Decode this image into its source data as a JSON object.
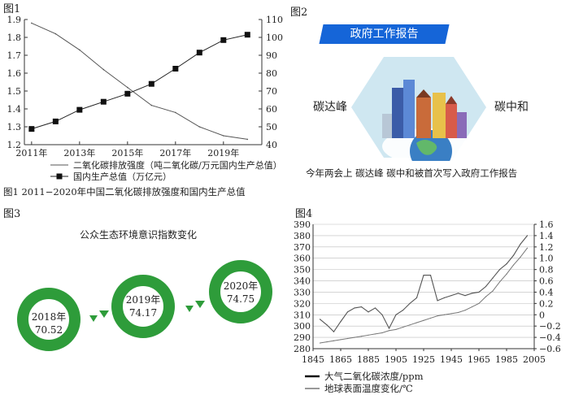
{
  "fig1": {
    "label": "图1",
    "caption": "图1  2011−2020年中国二氧化碳排放强度和国内生产总值",
    "legend": [
      "二氧化碳排放强度（吨二氧化碳/万元国内生产总值）",
      "国内生产总值（万亿元）"
    ],
    "y_left_ticks": [
      "1.2",
      "1.3",
      "1.4",
      "1.5",
      "1.6",
      "1.7",
      "1.8",
      "1.9"
    ],
    "y_right_ticks": [
      "40",
      "50",
      "60",
      "70",
      "80",
      "90",
      "100",
      "110"
    ],
    "x_ticks": [
      "2011年",
      "2013年",
      "2015年",
      "2017年",
      "2019年"
    ]
  },
  "chart_data": [
    {
      "type": "line",
      "x": [
        2011,
        2012,
        2013,
        2014,
        2015,
        2016,
        2017,
        2018,
        2019,
        2020
      ],
      "series": [
        {
          "name": "二氧化碳排放强度（吨二氧化碳/万元国内生产总值）",
          "axis": "left",
          "values": [
            1.88,
            1.82,
            1.73,
            1.62,
            1.52,
            1.42,
            1.38,
            1.3,
            1.25,
            1.23
          ]
        },
        {
          "name": "国内生产总值（万亿元）",
          "axis": "right",
          "marker": "square",
          "values": [
            48.8,
            53.0,
            59.5,
            64.0,
            68.5,
            74.0,
            82.5,
            91.5,
            98.5,
            101.5
          ]
        }
      ],
      "ylim_left": [
        1.2,
        1.9
      ],
      "ylim_right": [
        40,
        110
      ],
      "xlim": [
        2010.7,
        2020.6
      ]
    },
    {
      "type": "line",
      "x": [
        1850,
        1855,
        1860,
        1865,
        1870,
        1875,
        1880,
        1885,
        1890,
        1895,
        1900,
        1905,
        1910,
        1915,
        1920,
        1925,
        1930,
        1935,
        1940,
        1945,
        1950,
        1955,
        1960,
        1965,
        1970,
        1975,
        1980,
        1985,
        1990,
        1995,
        2000
      ],
      "series": [
        {
          "name": "大气二氧化碳浓度/ppm",
          "axis": "left",
          "values": [
            285,
            286,
            287,
            288,
            289,
            290,
            291,
            292,
            293,
            294,
            296,
            297,
            299,
            301,
            303,
            305,
            307,
            309,
            310,
            311,
            312,
            314,
            317,
            320,
            326,
            331,
            339,
            346,
            354,
            361,
            369
          ]
        },
        {
          "name": "地球表面温度变化/℃",
          "axis": "right",
          "values": [
            -0.08,
            -0.18,
            -0.3,
            -0.12,
            0.05,
            0.12,
            0.14,
            0.05,
            0.12,
            0.0,
            -0.24,
            0.0,
            0.08,
            0.2,
            0.3,
            0.7,
            0.7,
            0.25,
            0.3,
            0.34,
            0.38,
            0.34,
            0.38,
            0.4,
            0.5,
            0.65,
            0.8,
            0.9,
            1.05,
            1.25,
            1.4
          ]
        }
      ],
      "ylim_left": [
        280,
        390
      ],
      "ylim_right": [
        -0.6,
        1.6
      ],
      "xlim": [
        1845,
        2005
      ]
    }
  ],
  "fig2": {
    "label": "图2",
    "banner": "政府工作报告",
    "left_text": "碳达峰",
    "right_text": "碳中和",
    "caption": "今年两会上 碳达峰 碳中和被首次写入政府工作报告"
  },
  "fig3": {
    "label": "图3",
    "title": "公众生态环境意识指数变化",
    "items": [
      {
        "year": "2018年",
        "value": "70.52"
      },
      {
        "year": "2019年",
        "value": "74.17"
      },
      {
        "year": "2020年",
        "value": "74.75"
      }
    ]
  },
  "fig4": {
    "label": "图4",
    "y_left_ticks": [
      "280",
      "290",
      "300",
      "310",
      "320",
      "330",
      "340",
      "350",
      "360",
      "370",
      "380",
      "390"
    ],
    "y_right_ticks": [
      "−0.6",
      "−0.4",
      "−0.2",
      "0",
      "0.2",
      "0.4",
      "0.6",
      "0.8",
      "1.0",
      "1.2",
      "1.4",
      "1.6"
    ],
    "x_ticks": [
      "1845",
      "1865",
      "1885",
      "1905",
      "1925",
      "1945",
      "1965",
      "1985",
      "2005"
    ],
    "legend": [
      "大气二氧化碳浓度/ppm",
      "地球表面温度变化/℃"
    ]
  },
  "colors": {
    "green": "#2e9c3a",
    "banner": "#1565d8",
    "hex_bg": "#cfe7f1"
  }
}
